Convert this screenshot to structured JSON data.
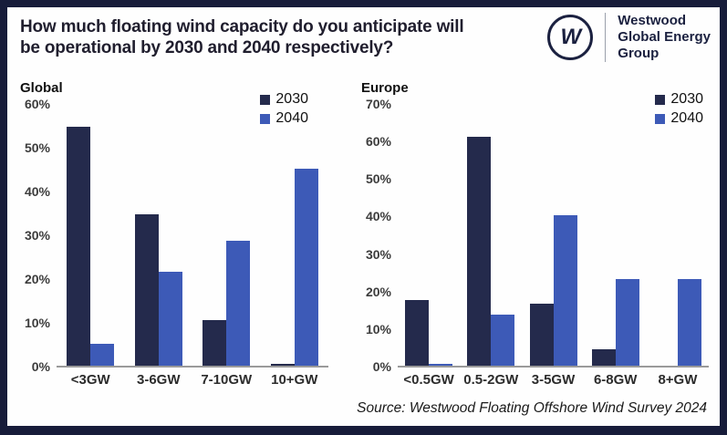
{
  "header": {
    "title_line1": "How much floating wind capacity do you anticipate will",
    "title_line2": "be operational by 2030 and 2040 respectively?"
  },
  "logo": {
    "monogram": "W",
    "name_line1": "Westwood",
    "name_line2": "Global Energy",
    "name_line3": "Group"
  },
  "colors": {
    "frame": "#171c3a",
    "bar_2030": "#242a4c",
    "bar_2040": "#3d5ab7",
    "axis_line": "#9a9a9a"
  },
  "chart_data": [
    {
      "type": "bar",
      "title": "Global",
      "categories": [
        "<3GW",
        "3-6GW",
        "7-10GW",
        "10+GW"
      ],
      "series": [
        {
          "name": "2030",
          "color": "#242a4c",
          "values": [
            54.5,
            34.5,
            10.5,
            0.5
          ]
        },
        {
          "name": "2040",
          "color": "#3d5ab7",
          "values": [
            5,
            21.5,
            28.5,
            45
          ]
        }
      ],
      "ylabel": "",
      "xlabel": "",
      "ylim": [
        0,
        60
      ],
      "ytick_step": 10,
      "ytick_suffix": "%",
      "grid": false,
      "legend_position": "top-right"
    },
    {
      "type": "bar",
      "title": "Europe",
      "categories": [
        "<0.5GW",
        "0.5-2GW",
        "3-5GW",
        "6-8GW",
        "8+GW"
      ],
      "series": [
        {
          "name": "2030",
          "color": "#242a4c",
          "values": [
            17.5,
            61,
            16.5,
            4.5,
            0
          ]
        },
        {
          "name": "2040",
          "color": "#3d5ab7",
          "values": [
            0.5,
            13.5,
            40,
            23,
            23
          ]
        }
      ],
      "ylabel": "",
      "xlabel": "",
      "ylim": [
        0,
        70
      ],
      "ytick_step": 10,
      "ytick_suffix": "%",
      "grid": false,
      "legend_position": "top-right"
    }
  ],
  "footer": {
    "source": "Source: Westwood Floating Offshore Wind Survey 2024"
  }
}
